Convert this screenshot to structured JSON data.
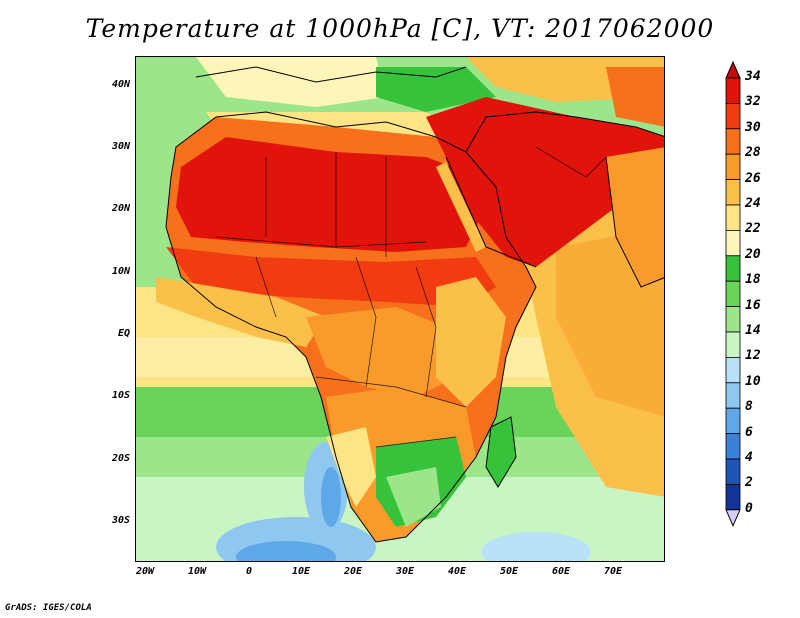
{
  "title": "Temperature at 1000hPa [C], VT: 2017062000",
  "credit": "GrADS: IGES/COLA",
  "map": {
    "lat_labels": [
      "40N",
      "30N",
      "20N",
      "10N",
      "EQ",
      "10S",
      "20S",
      "30S"
    ],
    "lon_labels": [
      "20W",
      "10W",
      "0",
      "10E",
      "20E",
      "30E",
      "40E",
      "50E",
      "60E",
      "70E"
    ],
    "lon_range": [
      -22,
      80
    ],
    "lat_range": [
      -36,
      45
    ]
  },
  "colorbar": {
    "levels": [
      "34",
      "32",
      "30",
      "28",
      "26",
      "24",
      "22",
      "20",
      "18",
      "16",
      "14",
      "12",
      "10",
      "8",
      "6",
      "4",
      "2",
      "0"
    ],
    "colors": [
      "#e0140a",
      "#f03c10",
      "#f7701b",
      "#fa9a2a",
      "#fbc04a",
      "#fde484",
      "#fef5b8",
      "#36c23a",
      "#69d35a",
      "#9ce58a",
      "#c9f5c2",
      "#b8e0f6",
      "#8ec8f0",
      "#5fa8e8",
      "#3a7fd8",
      "#1f55b8",
      "#12339a",
      "#0a1a70"
    ],
    "under_color": "#d8ccfc",
    "over_color": "#c80a0a"
  }
}
